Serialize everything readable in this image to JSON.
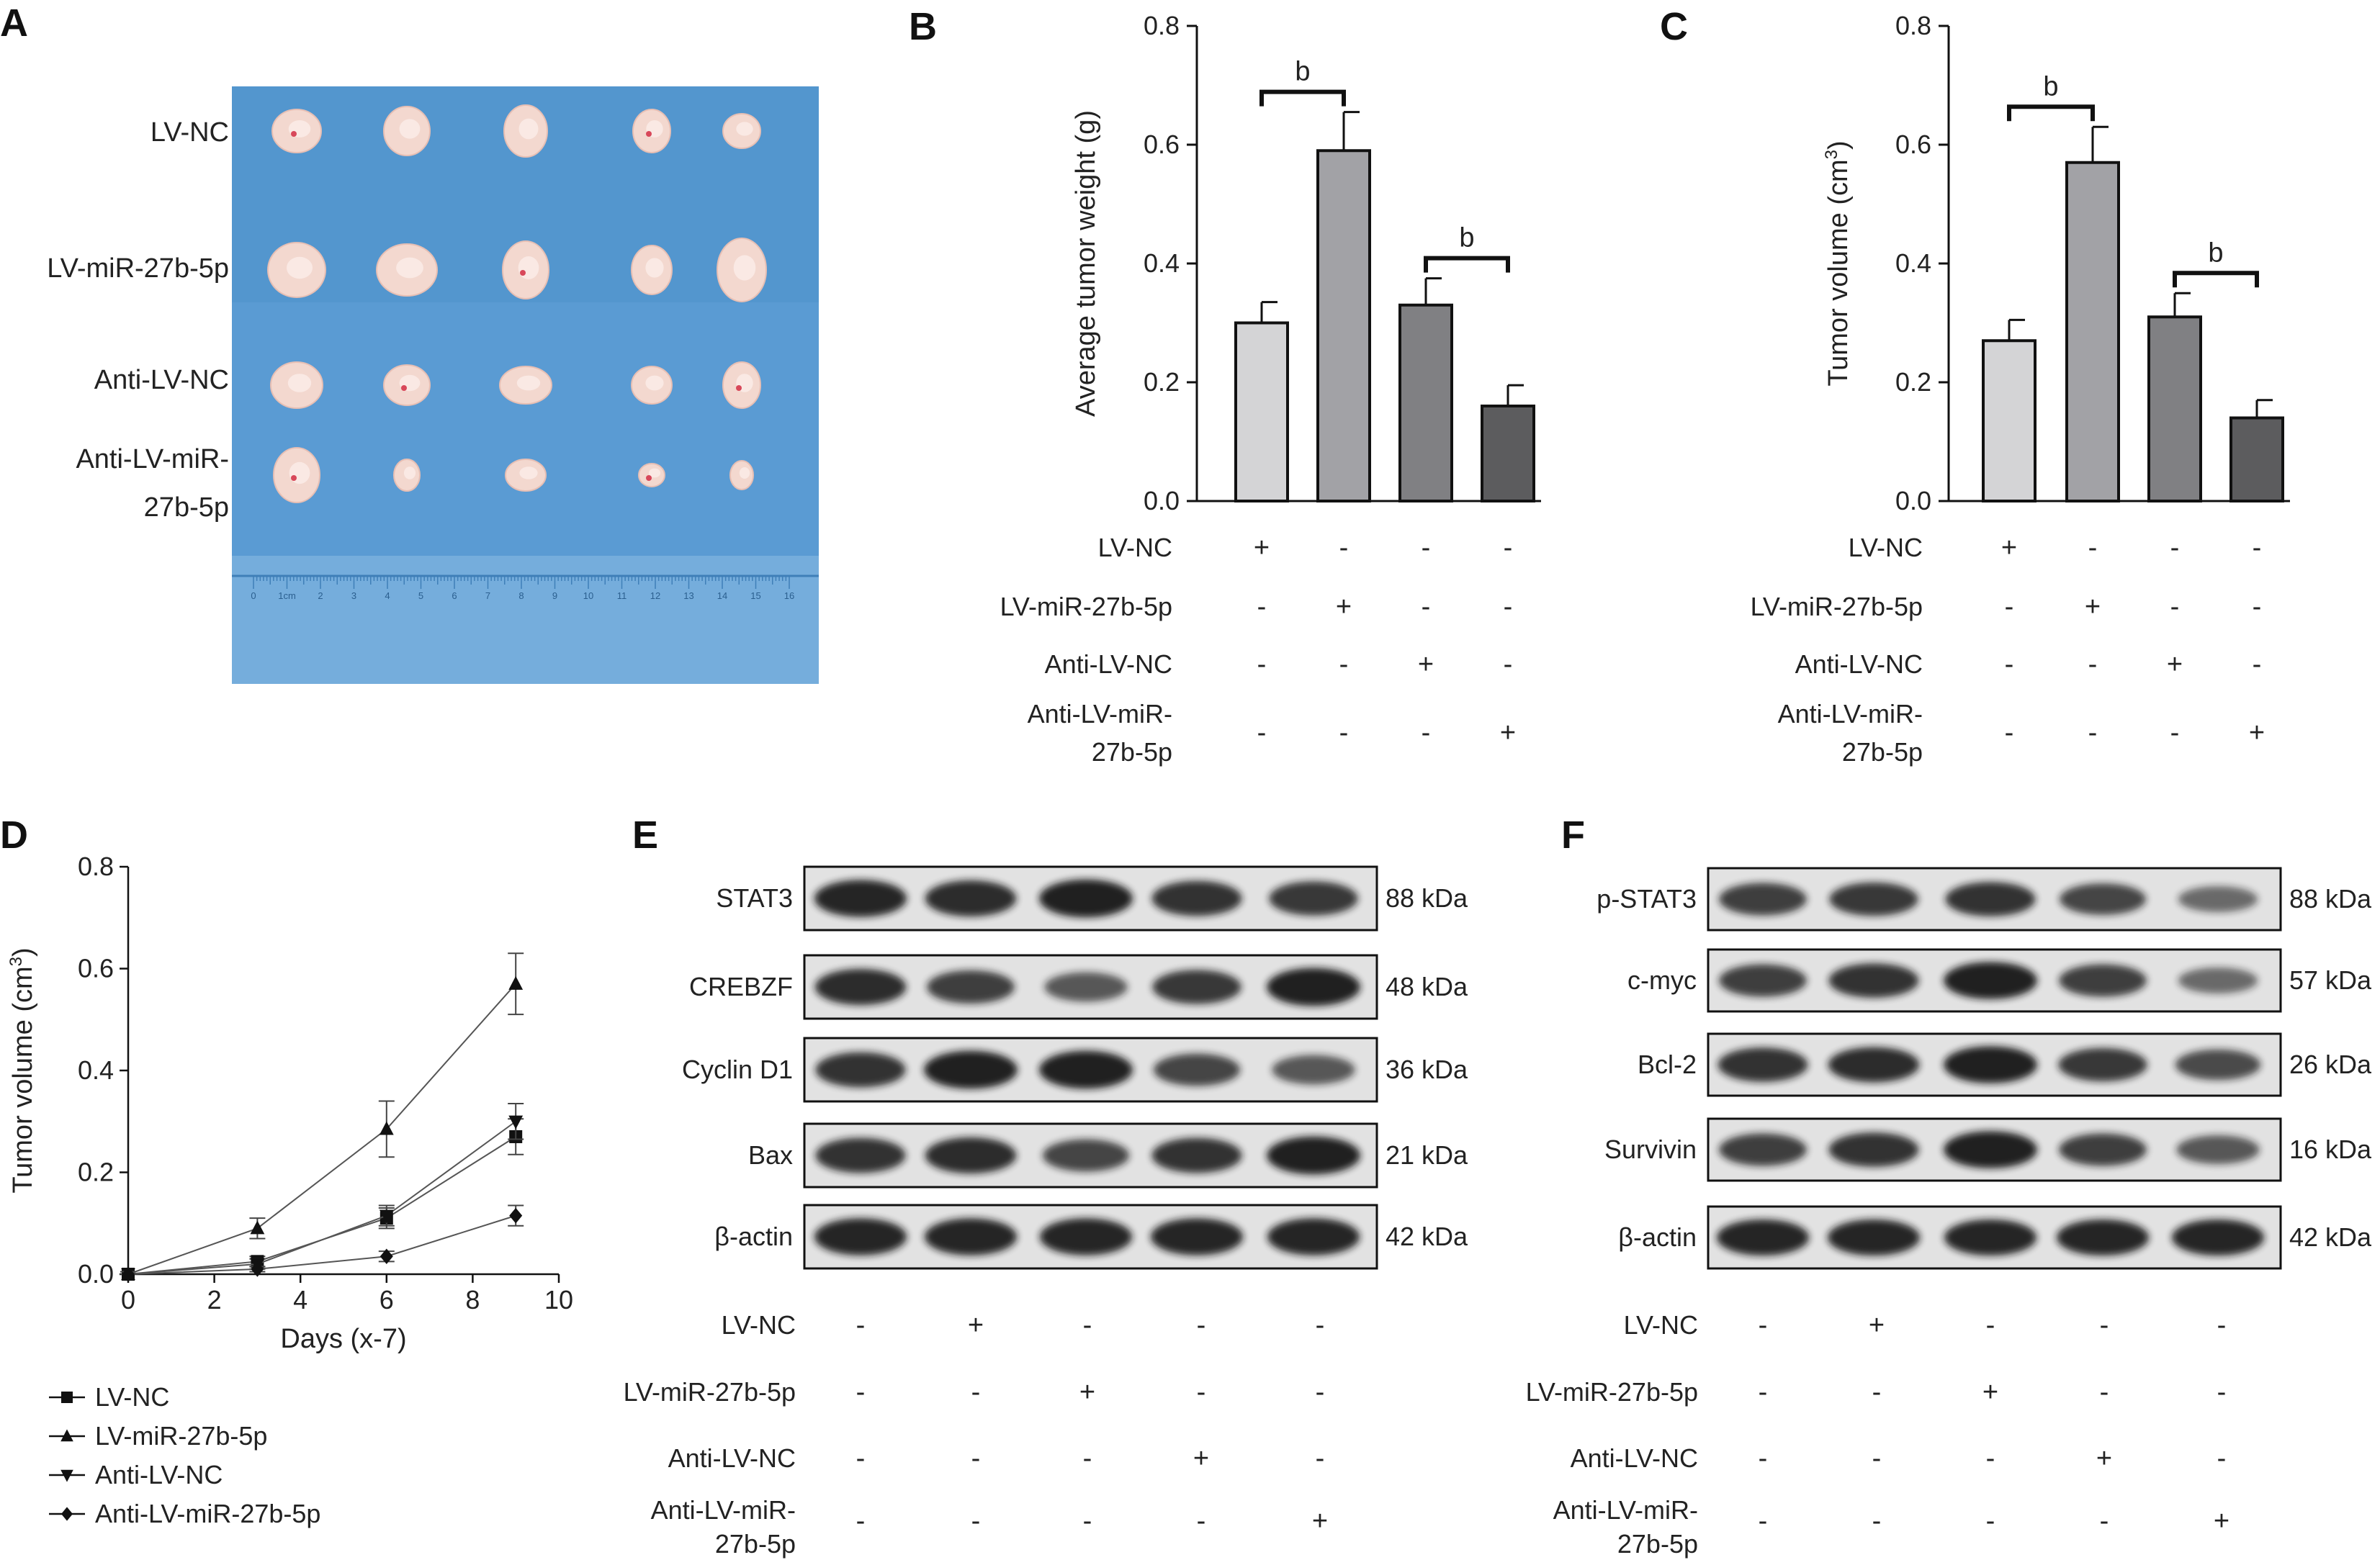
{
  "panels": {
    "a": {
      "letter": "A"
    },
    "b": {
      "letter": "B"
    },
    "c": {
      "letter": "C"
    },
    "d": {
      "letter": "D"
    },
    "e": {
      "letter": "E"
    },
    "f": {
      "letter": "F"
    }
  },
  "groups": [
    "LV-NC",
    "LV-miR-27b-5p",
    "Anti-LV-NC",
    "Anti-LV-miR-27b-5p"
  ],
  "photo": {
    "row_labels": [
      "LV-NC",
      "LV-miR-27b-5p",
      "Anti-LV-NC",
      "Anti-LV-miR-",
      "27b-5p"
    ],
    "ruler_numbers": [
      "0",
      "1cm",
      "2",
      "3",
      "4",
      "5",
      "6",
      "7",
      "8",
      "9",
      "10",
      "11",
      "12",
      "13",
      "14",
      "15",
      "16"
    ]
  },
  "design_matrix": {
    "labels": [
      "LV-NC",
      "LV-miR-27b-5p",
      "Anti-LV-NC",
      "Anti-LV-miR-",
      "27b-5p"
    ],
    "signs": [
      [
        "+",
        "-",
        "-",
        "-"
      ],
      [
        "-",
        "+",
        "-",
        "-"
      ],
      [
        "-",
        "-",
        "+",
        "-"
      ],
      [
        "-",
        "-",
        "-",
        "+"
      ]
    ],
    "blot_signs": [
      [
        "-",
        "+",
        "-",
        "-",
        "-"
      ],
      [
        "-",
        "-",
        "+",
        "-",
        "-"
      ],
      [
        "-",
        "-",
        "-",
        "+",
        "-"
      ],
      [
        "-",
        "-",
        "-",
        "-",
        "+"
      ]
    ]
  },
  "chart_data": [
    {
      "id": "B",
      "type": "bar",
      "ylabel": "Average tumor weight (g)",
      "categories": [
        "LV-NC",
        "LV-miR-27b-5p",
        "Anti-LV-NC",
        "Anti-LV-miR-27b-5p"
      ],
      "values": [
        0.3,
        0.59,
        0.33,
        0.16
      ],
      "errors": [
        0.035,
        0.065,
        0.045,
        0.035
      ],
      "ylim": [
        0,
        0.8
      ],
      "yticks": [
        "0.0",
        "0.2",
        "0.4",
        "0.6",
        "0.8"
      ],
      "colors": [
        "#d4d4d6",
        "#a2a2a6",
        "#808083",
        "#5c5c5e"
      ],
      "significance": [
        {
          "label": "b"
        },
        {
          "label": "b"
        }
      ]
    },
    {
      "id": "C",
      "type": "bar",
      "ylabel": "Tumor volume (cm",
      "ylabel_sup": "3",
      "ylabel_end": ")",
      "categories": [
        "LV-NC",
        "LV-miR-27b-5p",
        "Anti-LV-NC",
        "Anti-LV-miR-27b-5p"
      ],
      "values": [
        0.27,
        0.57,
        0.31,
        0.14
      ],
      "errors": [
        0.035,
        0.06,
        0.04,
        0.03
      ],
      "ylim": [
        0,
        0.8
      ],
      "yticks": [
        "0.0",
        "0.2",
        "0.4",
        "0.6",
        "0.8"
      ],
      "colors": [
        "#d4d4d6",
        "#a2a2a6",
        "#808083",
        "#5c5c5e"
      ],
      "significance": [
        {
          "label": "b"
        },
        {
          "label": "b"
        }
      ]
    },
    {
      "id": "D",
      "type": "line",
      "xlabel": "Days (x-7)",
      "ylabel": "Tumor volume (cm",
      "ylabel_sup": "3",
      "ylabel_end": ")",
      "xlim": [
        0,
        10
      ],
      "ylim": [
        0,
        0.8
      ],
      "xticks": [
        "0",
        "2",
        "4",
        "6",
        "8",
        "10"
      ],
      "yticks": [
        "0.0",
        "0.2",
        "0.4",
        "0.6",
        "0.8"
      ],
      "x": [
        0,
        3,
        6,
        9
      ],
      "series": [
        {
          "name": "LV-NC",
          "marker": "square",
          "values": [
            0.0,
            0.025,
            0.11,
            0.27
          ],
          "errors": [
            0.005,
            0.01,
            0.02,
            0.035
          ]
        },
        {
          "name": "LV-miR-27b-5p",
          "marker": "triangle-up",
          "values": [
            0.0,
            0.09,
            0.285,
            0.57
          ],
          "errors": [
            0.005,
            0.02,
            0.055,
            0.06
          ]
        },
        {
          "name": "Anti-LV-NC",
          "marker": "triangle-down",
          "values": [
            0.0,
            0.02,
            0.115,
            0.3
          ],
          "errors": [
            0.005,
            0.01,
            0.02,
            0.035
          ]
        },
        {
          "name": "Anti-LV-miR-27b-5p",
          "marker": "diamond",
          "values": [
            0.0,
            0.01,
            0.035,
            0.115
          ],
          "errors": [
            0.005,
            0.005,
            0.01,
            0.02
          ]
        }
      ]
    }
  ],
  "blots": {
    "e": [
      {
        "name": "STAT3",
        "kda": "88 kDa",
        "intensity": [
          0.95,
          0.9,
          1.0,
          0.85,
          0.8
        ]
      },
      {
        "name": "CREBZF",
        "kda": "48 kDa",
        "intensity": [
          0.9,
          0.75,
          0.55,
          0.8,
          1.0
        ]
      },
      {
        "name": "Cyclin D1",
        "kda": "36 kDa",
        "intensity": [
          0.85,
          1.0,
          1.0,
          0.7,
          0.55
        ]
      },
      {
        "name": "Bax",
        "kda": "21 kDa",
        "intensity": [
          0.85,
          0.9,
          0.7,
          0.85,
          1.0
        ]
      },
      {
        "name": "β-actin",
        "kda": "42 kDa",
        "intensity": [
          0.95,
          0.95,
          0.95,
          0.95,
          0.95
        ]
      }
    ],
    "f": [
      {
        "name": "p-STAT3",
        "kda": "88 kDa",
        "intensity": [
          0.75,
          0.8,
          0.85,
          0.7,
          0.4
        ]
      },
      {
        "name": "c-myc",
        "kda": "57 kDa",
        "intensity": [
          0.75,
          0.85,
          1.0,
          0.75,
          0.4
        ]
      },
      {
        "name": "Bcl-2",
        "kda": "26 kDa",
        "intensity": [
          0.85,
          0.9,
          1.0,
          0.8,
          0.65
        ]
      },
      {
        "name": "Survivin",
        "kda": "16 kDa",
        "intensity": [
          0.75,
          0.85,
          1.0,
          0.75,
          0.55
        ]
      },
      {
        "name": "β-actin",
        "kda": "42 kDa",
        "intensity": [
          0.95,
          0.95,
          0.95,
          0.95,
          0.95
        ]
      }
    ]
  },
  "colors": {
    "photo_bg": "#5a9bd3",
    "axis": "#111111",
    "band": "#141414"
  }
}
